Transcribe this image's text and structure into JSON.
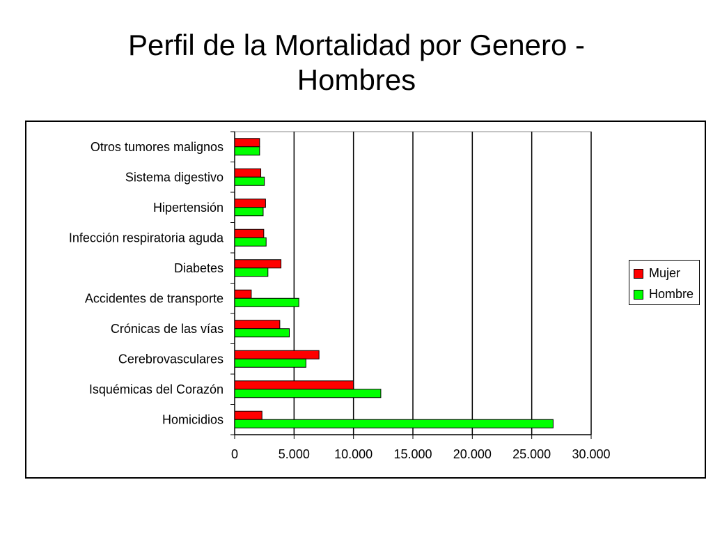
{
  "title": {
    "line1": "Perfil de la Mortalidad por Genero -",
    "line2": "Hombres"
  },
  "colors": {
    "mujer": "#ff0000",
    "hombre": "#00ff00",
    "grid": "#000000"
  },
  "chart_data": {
    "type": "bar",
    "orientation": "horizontal",
    "categories": [
      "Otros tumores malignos",
      "Sistema digestivo",
      "Hipertensión",
      "Infección respiratoria aguda",
      "Diabetes",
      "Accidentes de transporte",
      "Crónicas de las vías",
      "Cerebrovasculares",
      "Isquémicas del Corazón",
      "Homicidios"
    ],
    "series": [
      {
        "name": "Mujer",
        "values": [
          2100,
          2200,
          2600,
          2450,
          3900,
          1400,
          3800,
          7100,
          10000,
          2300
        ]
      },
      {
        "name": "Hombre",
        "values": [
          2100,
          2500,
          2400,
          2650,
          2800,
          5400,
          4600,
          6000,
          12300,
          26800
        ]
      }
    ],
    "xlim": [
      0,
      30000
    ],
    "xticks": [
      "0",
      "5.000",
      "10.000",
      "15.000",
      "20.000",
      "25.000",
      "30.000"
    ],
    "grid": true,
    "legend": "right"
  }
}
